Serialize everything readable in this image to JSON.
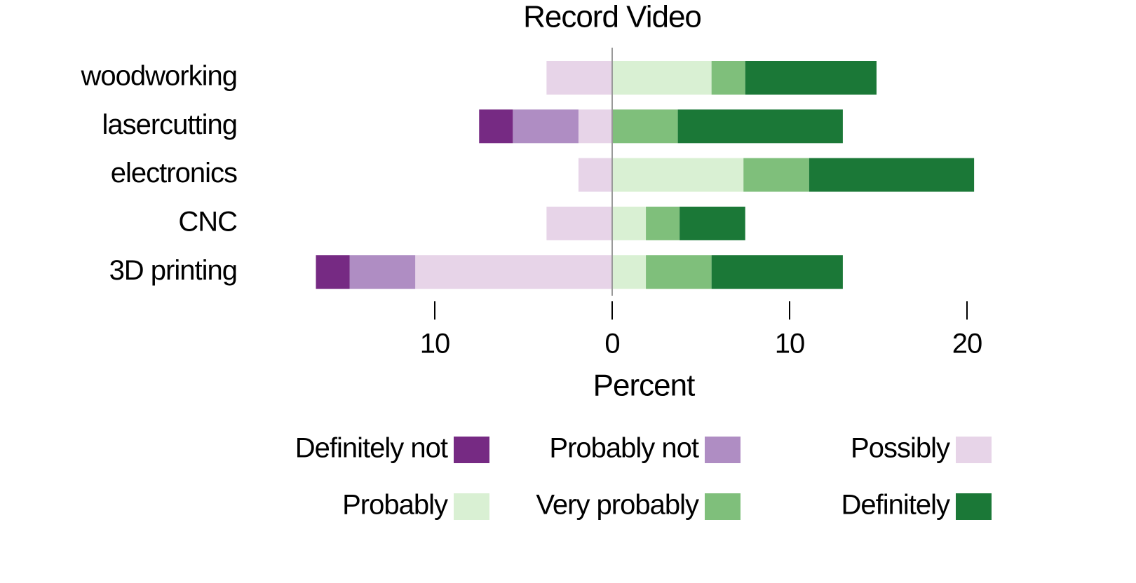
{
  "chart_data": {
    "type": "diverging-bar",
    "title": "Record Video",
    "x_label": "Percent",
    "categories": [
      "woodworking",
      "lasercutting",
      "electronics",
      "CNC",
      "3D printing"
    ],
    "series": [
      {
        "name": "Definitely not",
        "color": "#762a83",
        "values": [
          0,
          -1.9,
          0,
          0,
          -1.9
        ]
      },
      {
        "name": "Probably not",
        "color": "#af8dc3",
        "values": [
          0,
          -3.7,
          0,
          0,
          -3.7
        ]
      },
      {
        "name": "Possibly",
        "color": "#e7d4e8",
        "values": [
          -3.7,
          -1.9,
          -1.9,
          -3.7,
          -11.1
        ]
      },
      {
        "name": "Probably",
        "color": "#d9f0d3",
        "values": [
          5.6,
          0,
          7.4,
          1.9,
          1.9
        ]
      },
      {
        "name": "Very probably",
        "color": "#7fbf7b",
        "values": [
          1.9,
          3.7,
          3.7,
          1.9,
          3.7
        ]
      },
      {
        "name": "Definitely",
        "color": "#1b7837",
        "values": [
          7.4,
          9.3,
          9.3,
          3.7,
          7.4
        ]
      }
    ],
    "xlim": [
      -16.5,
      20.5
    ],
    "xticks": [
      {
        "value": -10,
        "label": "10"
      },
      0,
      10,
      20
    ]
  }
}
